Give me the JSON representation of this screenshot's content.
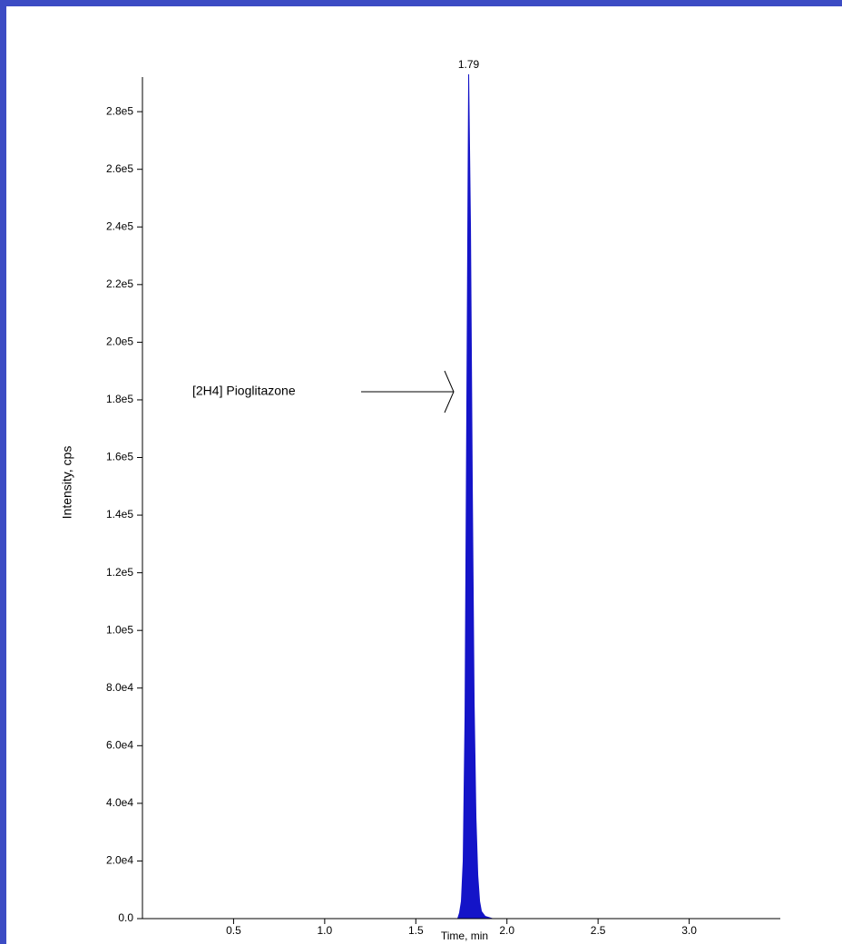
{
  "chart_data": {
    "type": "area",
    "x_label": "Time, min",
    "y_label": "Intensity, cps",
    "peak_label": "1.79",
    "annotation": "[2H4] Pioglitazone",
    "color": "#1414c8",
    "x": [
      0,
      1.7,
      1.73,
      1.74,
      1.75,
      1.76,
      1.77,
      1.78,
      1.79,
      1.8,
      1.81,
      1.82,
      1.83,
      1.84,
      1.85,
      1.86,
      1.88,
      1.92,
      3.5
    ],
    "values": [
      0,
      0,
      0,
      2000,
      6000,
      20000,
      70000,
      180000,
      293000,
      240000,
      150000,
      75000,
      35000,
      15000,
      6000,
      2500,
      800,
      0,
      0
    ],
    "xlim": [
      0,
      3.5
    ],
    "xticks": [
      0.5,
      {
        "value": 1,
        "label": "1.0"
      },
      1.5,
      {
        "value": 2,
        "label": "2.0"
      },
      2.5,
      {
        "value": 3,
        "label": "3.0"
      }
    ],
    "ylim": [
      0,
      292000
    ],
    "yticks": [
      {
        "value": 0,
        "label": "0.0"
      },
      {
        "value": 20000,
        "label": "2.0e4"
      },
      {
        "value": 40000,
        "label": "4.0e4"
      },
      {
        "value": 60000,
        "label": "6.0e4"
      },
      {
        "value": 80000,
        "label": "8.0e4"
      },
      {
        "value": 100000,
        "label": "1.0e5"
      },
      {
        "value": 120000,
        "label": "1.2e5"
      },
      {
        "value": 140000,
        "label": "1.4e5"
      },
      {
        "value": 160000,
        "label": "1.6e5"
      },
      {
        "value": 180000,
        "label": "1.8e5"
      },
      {
        "value": 200000,
        "label": "2.0e5"
      },
      {
        "value": 220000,
        "label": "2.2e5"
      },
      {
        "value": 240000,
        "label": "2.4e5"
      },
      {
        "value": 260000,
        "label": "2.6e5"
      },
      {
        "value": 280000,
        "label": "2.8e5"
      }
    ]
  }
}
